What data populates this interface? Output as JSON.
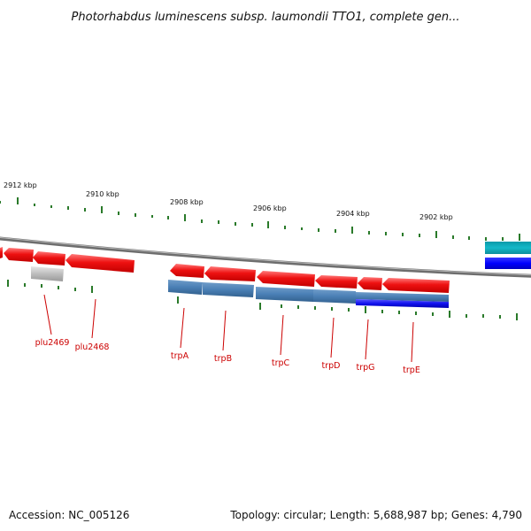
{
  "title": "Photorhabdus luminescens subsp. laumondii TTO1, complete gen...",
  "footer": {
    "accession": "Accession: NC_005126",
    "summary": "Topology: circular; Length: 5,688,987 bp; Genes: 4,790"
  },
  "scale_labels": [
    "2912 kbp",
    "2910 kbp",
    "2908 kbp",
    "2906 kbp",
    "2904 kbp",
    "2902 kbp"
  ],
  "gene_labels": [
    "plu2469",
    "plu2468",
    "trpA",
    "trpB",
    "trpC",
    "trpD",
    "trpG",
    "trpE"
  ],
  "colors": {
    "cds_reverse": "#ee1111",
    "gene_light_gray": "#bbbbbb",
    "steel_blue": "#4a7fb5",
    "blue": "#1111ee",
    "cyan": "#14b8c8",
    "label_red": "#cc0000",
    "tick_green": "#2a7a2a",
    "backbone": "#888888"
  }
}
